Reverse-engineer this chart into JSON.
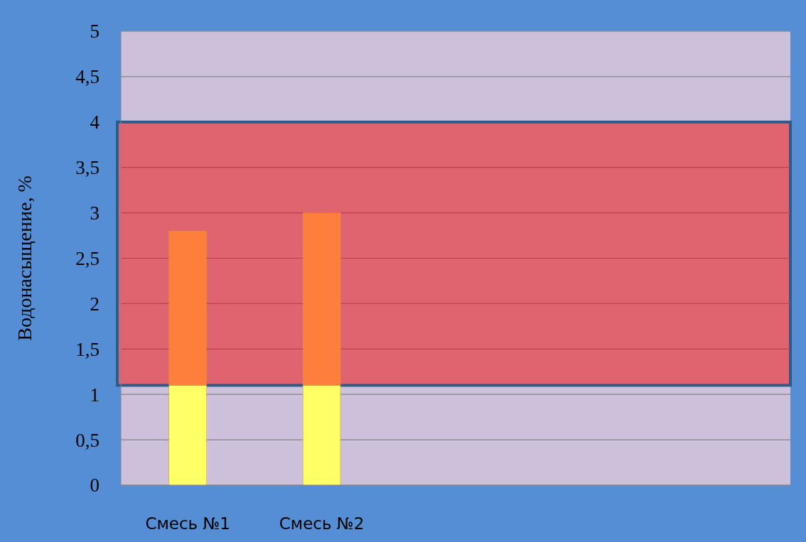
{
  "chart_data": {
    "type": "bar",
    "ylabel": "Водонасыщение, %",
    "categories": [
      "Смесь №1",
      "Смесь №2",
      null,
      null,
      null
    ],
    "stacked": true,
    "series": [
      {
        "color": "#ffff66",
        "values": [
          1.1,
          1.1,
          null,
          null,
          null
        ]
      },
      {
        "color": "#fd7f3b",
        "values": [
          1.7,
          1.9,
          null,
          null,
          null
        ]
      }
    ],
    "ylim": [
      0,
      5
    ],
    "yticks": [
      0,
      {
        "value": 0.5,
        "label": "0,5"
      },
      1,
      {
        "value": 1.5,
        "label": "1,5"
      },
      2,
      {
        "value": 2.5,
        "label": "2,5"
      },
      3,
      {
        "value": 3.5,
        "label": "3,5"
      },
      4,
      {
        "value": 4.5,
        "label": "4,5"
      },
      5
    ],
    "grid": "y",
    "bands": [
      {
        "axis": "y",
        "from": 1.1,
        "to": 4,
        "color": "#e06470"
      }
    ]
  }
}
